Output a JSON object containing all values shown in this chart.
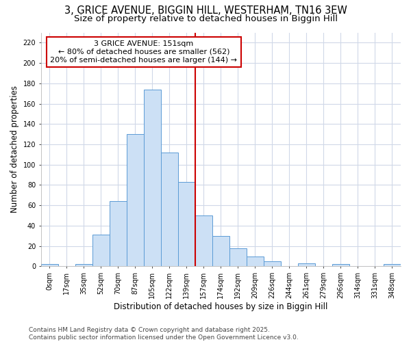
{
  "title_line1": "3, GRICE AVENUE, BIGGIN HILL, WESTERHAM, TN16 3EW",
  "title_line2": "Size of property relative to detached houses in Biggin Hill",
  "xlabel": "Distribution of detached houses by size in Biggin Hill",
  "ylabel": "Number of detached properties",
  "footer_line1": "Contains HM Land Registry data © Crown copyright and database right 2025.",
  "footer_line2": "Contains public sector information licensed under the Open Government Licence v3.0.",
  "bar_labels": [
    "0sqm",
    "17sqm",
    "35sqm",
    "52sqm",
    "70sqm",
    "87sqm",
    "105sqm",
    "122sqm",
    "139sqm",
    "157sqm",
    "174sqm",
    "192sqm",
    "209sqm",
    "226sqm",
    "244sqm",
    "261sqm",
    "279sqm",
    "296sqm",
    "314sqm",
    "331sqm",
    "348sqm"
  ],
  "bar_values": [
    2,
    0,
    2,
    31,
    64,
    130,
    174,
    112,
    83,
    50,
    30,
    18,
    10,
    5,
    0,
    3,
    0,
    2,
    0,
    0,
    2
  ],
  "bar_color": "#cce0f5",
  "bar_edge_color": "#5b9bd5",
  "property_label": "3 GRICE AVENUE: 151sqm",
  "annotation_line1": "← 80% of detached houses are smaller (562)",
  "annotation_line2": "20% of semi-detached houses are larger (144) →",
  "vline_color": "#cc0000",
  "annotation_box_edge_color": "#cc0000",
  "annotation_box_face_color": "#ffffff",
  "vline_x": 8.5,
  "ylim": [
    0,
    230
  ],
  "yticks": [
    0,
    20,
    40,
    60,
    80,
    100,
    120,
    140,
    160,
    180,
    200,
    220
  ],
  "background_color": "#ffffff",
  "grid_color": "#d0d8e8",
  "title_fontsize": 10.5,
  "subtitle_fontsize": 9.5,
  "axis_label_fontsize": 8.5,
  "tick_fontsize": 7,
  "annotation_fontsize": 8,
  "footer_fontsize": 6.5
}
